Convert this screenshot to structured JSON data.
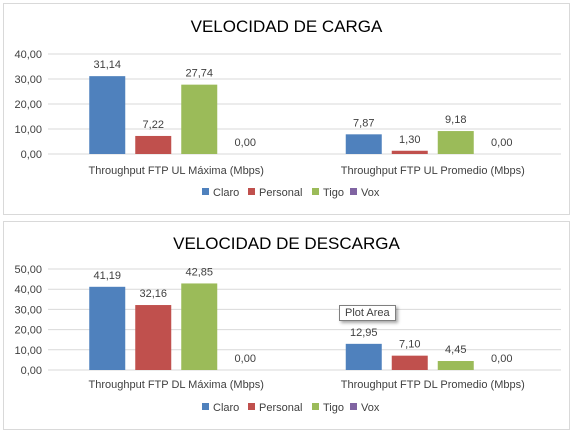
{
  "chart_data": [
    {
      "type": "bar",
      "title": "VELOCIDAD DE CARGA",
      "categories": [
        "Throughput FTP UL Máxima (Mbps)",
        "Throughput FTP UL Promedio (Mbps)"
      ],
      "series": [
        {
          "name": "Claro",
          "color": "#4f81bd",
          "values": [
            31.14,
            7.87
          ],
          "labels": [
            "31,14",
            "7,87"
          ]
        },
        {
          "name": "Personal",
          "color": "#c0504d",
          "values": [
            7.22,
            1.3
          ],
          "labels": [
            "7,22",
            "1,30"
          ]
        },
        {
          "name": "Tigo",
          "color": "#9bbb59",
          "values": [
            27.74,
            9.18
          ],
          "labels": [
            "27,74",
            "9,18"
          ]
        },
        {
          "name": "Vox",
          "color": "#8064a2",
          "values": [
            0.0,
            0.0
          ],
          "labels": [
            "0,00",
            "0,00"
          ]
        }
      ],
      "ylim": [
        0,
        40
      ],
      "yticks": [
        "0,00",
        "10,00",
        "20,00",
        "30,00",
        "40,00"
      ],
      "grid": true,
      "legend": "bottom"
    },
    {
      "type": "bar",
      "title": "VELOCIDAD DE DESCARGA",
      "categories": [
        "Throughput FTP DL Máxima (Mbps)",
        "Throughput FTP DL Promedio (Mbps)"
      ],
      "series": [
        {
          "name": "Claro",
          "color": "#4f81bd",
          "values": [
            41.19,
            12.95
          ],
          "labels": [
            "41,19",
            "12,95"
          ]
        },
        {
          "name": "Personal",
          "color": "#c0504d",
          "values": [
            32.16,
            7.1
          ],
          "labels": [
            "32,16",
            "7,10"
          ]
        },
        {
          "name": "Tigo",
          "color": "#9bbb59",
          "values": [
            42.85,
            4.45
          ],
          "labels": [
            "42,85",
            "4,45"
          ]
        },
        {
          "name": "Vox",
          "color": "#8064a2",
          "values": [
            0.0,
            0.0
          ],
          "labels": [
            "0,00",
            "0,00"
          ]
        }
      ],
      "ylim": [
        0,
        50
      ],
      "yticks": [
        "0,00",
        "10,00",
        "20,00",
        "30,00",
        "40,00",
        "50,00"
      ],
      "grid": true,
      "legend": "bottom"
    }
  ],
  "tooltip": {
    "text": "Plot Area"
  }
}
